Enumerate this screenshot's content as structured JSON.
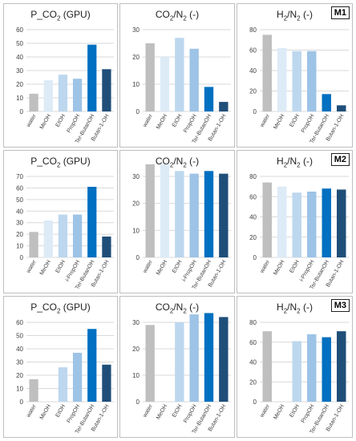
{
  "row_labels": [
    "M1",
    "M2",
    "M3"
  ],
  "colors": {
    "water": "#bfbfbf",
    "MeOH": "#ddebf7",
    "EtOH": "#bdd7ee",
    "PropOH": "#9dc3e6",
    "Ter-ButanOH": "#0070c0",
    "Butan-1-OH": "#1f4e79",
    "grid": "#d9d9d9",
    "axis_text": "#404040"
  },
  "chart_data": [
    {
      "type": "bar",
      "id": "m1-pco2",
      "title": "P_CO2 (GPU)",
      "categories": [
        "water",
        "MeOH",
        "EtOH",
        "PropOH",
        "Ter-ButanOH",
        "Butan-1-OH"
      ],
      "values": [
        13,
        23,
        27,
        24,
        49,
        31
      ],
      "ylim": [
        0,
        60
      ],
      "yticks": [
        0,
        10,
        20,
        30,
        40,
        50,
        60
      ],
      "grid": true
    },
    {
      "type": "bar",
      "id": "m1-co2n2",
      "title": "CO2/N2 (-)",
      "categories": [
        "water",
        "MeOH",
        "EtOH",
        "PropOH",
        "Ter-ButanOH",
        "Butan-1-OH"
      ],
      "values": [
        25,
        20,
        27,
        23,
        9,
        3.5
      ],
      "ylim": [
        0,
        30
      ],
      "yticks": [
        0,
        10,
        20,
        30
      ],
      "grid": true
    },
    {
      "type": "bar",
      "id": "m1-h2n2",
      "title": "H2/N2 (-)",
      "categories": [
        "water",
        "MeOH",
        "EtOH",
        "PropOH",
        "Ter-ButanOH",
        "Butan-1-OH"
      ],
      "values": [
        75,
        62,
        59,
        59,
        17,
        6
      ],
      "ylim": [
        0,
        80
      ],
      "yticks": [
        0,
        20,
        40,
        60,
        80
      ],
      "grid": true
    },
    {
      "type": "bar",
      "id": "m2-pco2",
      "title": "P_CO2 (GPU)",
      "categories": [
        "water",
        "MeOH",
        "EtOH",
        "i-PropOH",
        "Ter-ButanOH",
        "Butan-1-OH"
      ],
      "values": [
        22,
        32,
        37,
        37,
        61,
        18
      ],
      "ylim": [
        0,
        70
      ],
      "yticks": [
        0,
        10,
        20,
        30,
        40,
        50,
        60,
        70
      ],
      "grid": true
    },
    {
      "type": "bar",
      "id": "m2-co2n2",
      "title": "CO2/N2 (-)",
      "categories": [
        "water",
        "MeOH",
        "EtOH",
        "i-PropOH",
        "Ter-ButanOH",
        "Butan-1-OH"
      ],
      "values": [
        34.5,
        34.5,
        32,
        31,
        32,
        31
      ],
      "ylim": [
        0,
        30
      ],
      "yticks": [
        0,
        10,
        20,
        30
      ],
      "grid": true
    },
    {
      "type": "bar",
      "id": "m2-h2n2",
      "title": "H2/N2 (-)",
      "categories": [
        "water",
        "MeOH",
        "EtOH",
        "i-PropOH",
        "Ter-ButanOH",
        "Butan-1-OH"
      ],
      "values": [
        74,
        70,
        64,
        65,
        68,
        67
      ],
      "ylim": [
        0,
        80
      ],
      "yticks": [
        0,
        20,
        40,
        60,
        80
      ],
      "grid": true
    },
    {
      "type": "bar",
      "id": "m3-pco2",
      "title": "P_CO2 (GPU)",
      "categories": [
        "water",
        "MeOH",
        "EtOH",
        "PropOH",
        "Ter-ButanOH",
        "Butan-1-OH"
      ],
      "values": [
        17,
        0,
        26,
        37,
        55,
        28
      ],
      "ylim": [
        0,
        60
      ],
      "yticks": [
        0,
        10,
        20,
        30,
        40,
        50,
        60
      ],
      "grid": true
    },
    {
      "type": "bar",
      "id": "m3-co2n2",
      "title": "CO2/N2 (-)",
      "categories": [
        "water",
        "MeOH",
        "EtOH",
        "PropOH",
        "Ter-ButanOH",
        "Butan-1-OH"
      ],
      "values": [
        29,
        0,
        30,
        33,
        33.5,
        32
      ],
      "ylim": [
        0,
        30
      ],
      "yticks": [
        0,
        10,
        20,
        30
      ],
      "grid": true
    },
    {
      "type": "bar",
      "id": "m3-h2n2",
      "title": "H2/N2 (-)",
      "categories": [
        "water",
        "MeOH",
        "EtOH",
        "PropOH",
        "Ter-ButanOH",
        "Butan-1-OH"
      ],
      "values": [
        71,
        0,
        61,
        68,
        65,
        71
      ],
      "ylim": [
        0,
        80
      ],
      "yticks": [
        0,
        20,
        40,
        60,
        80
      ],
      "grid": true
    }
  ]
}
